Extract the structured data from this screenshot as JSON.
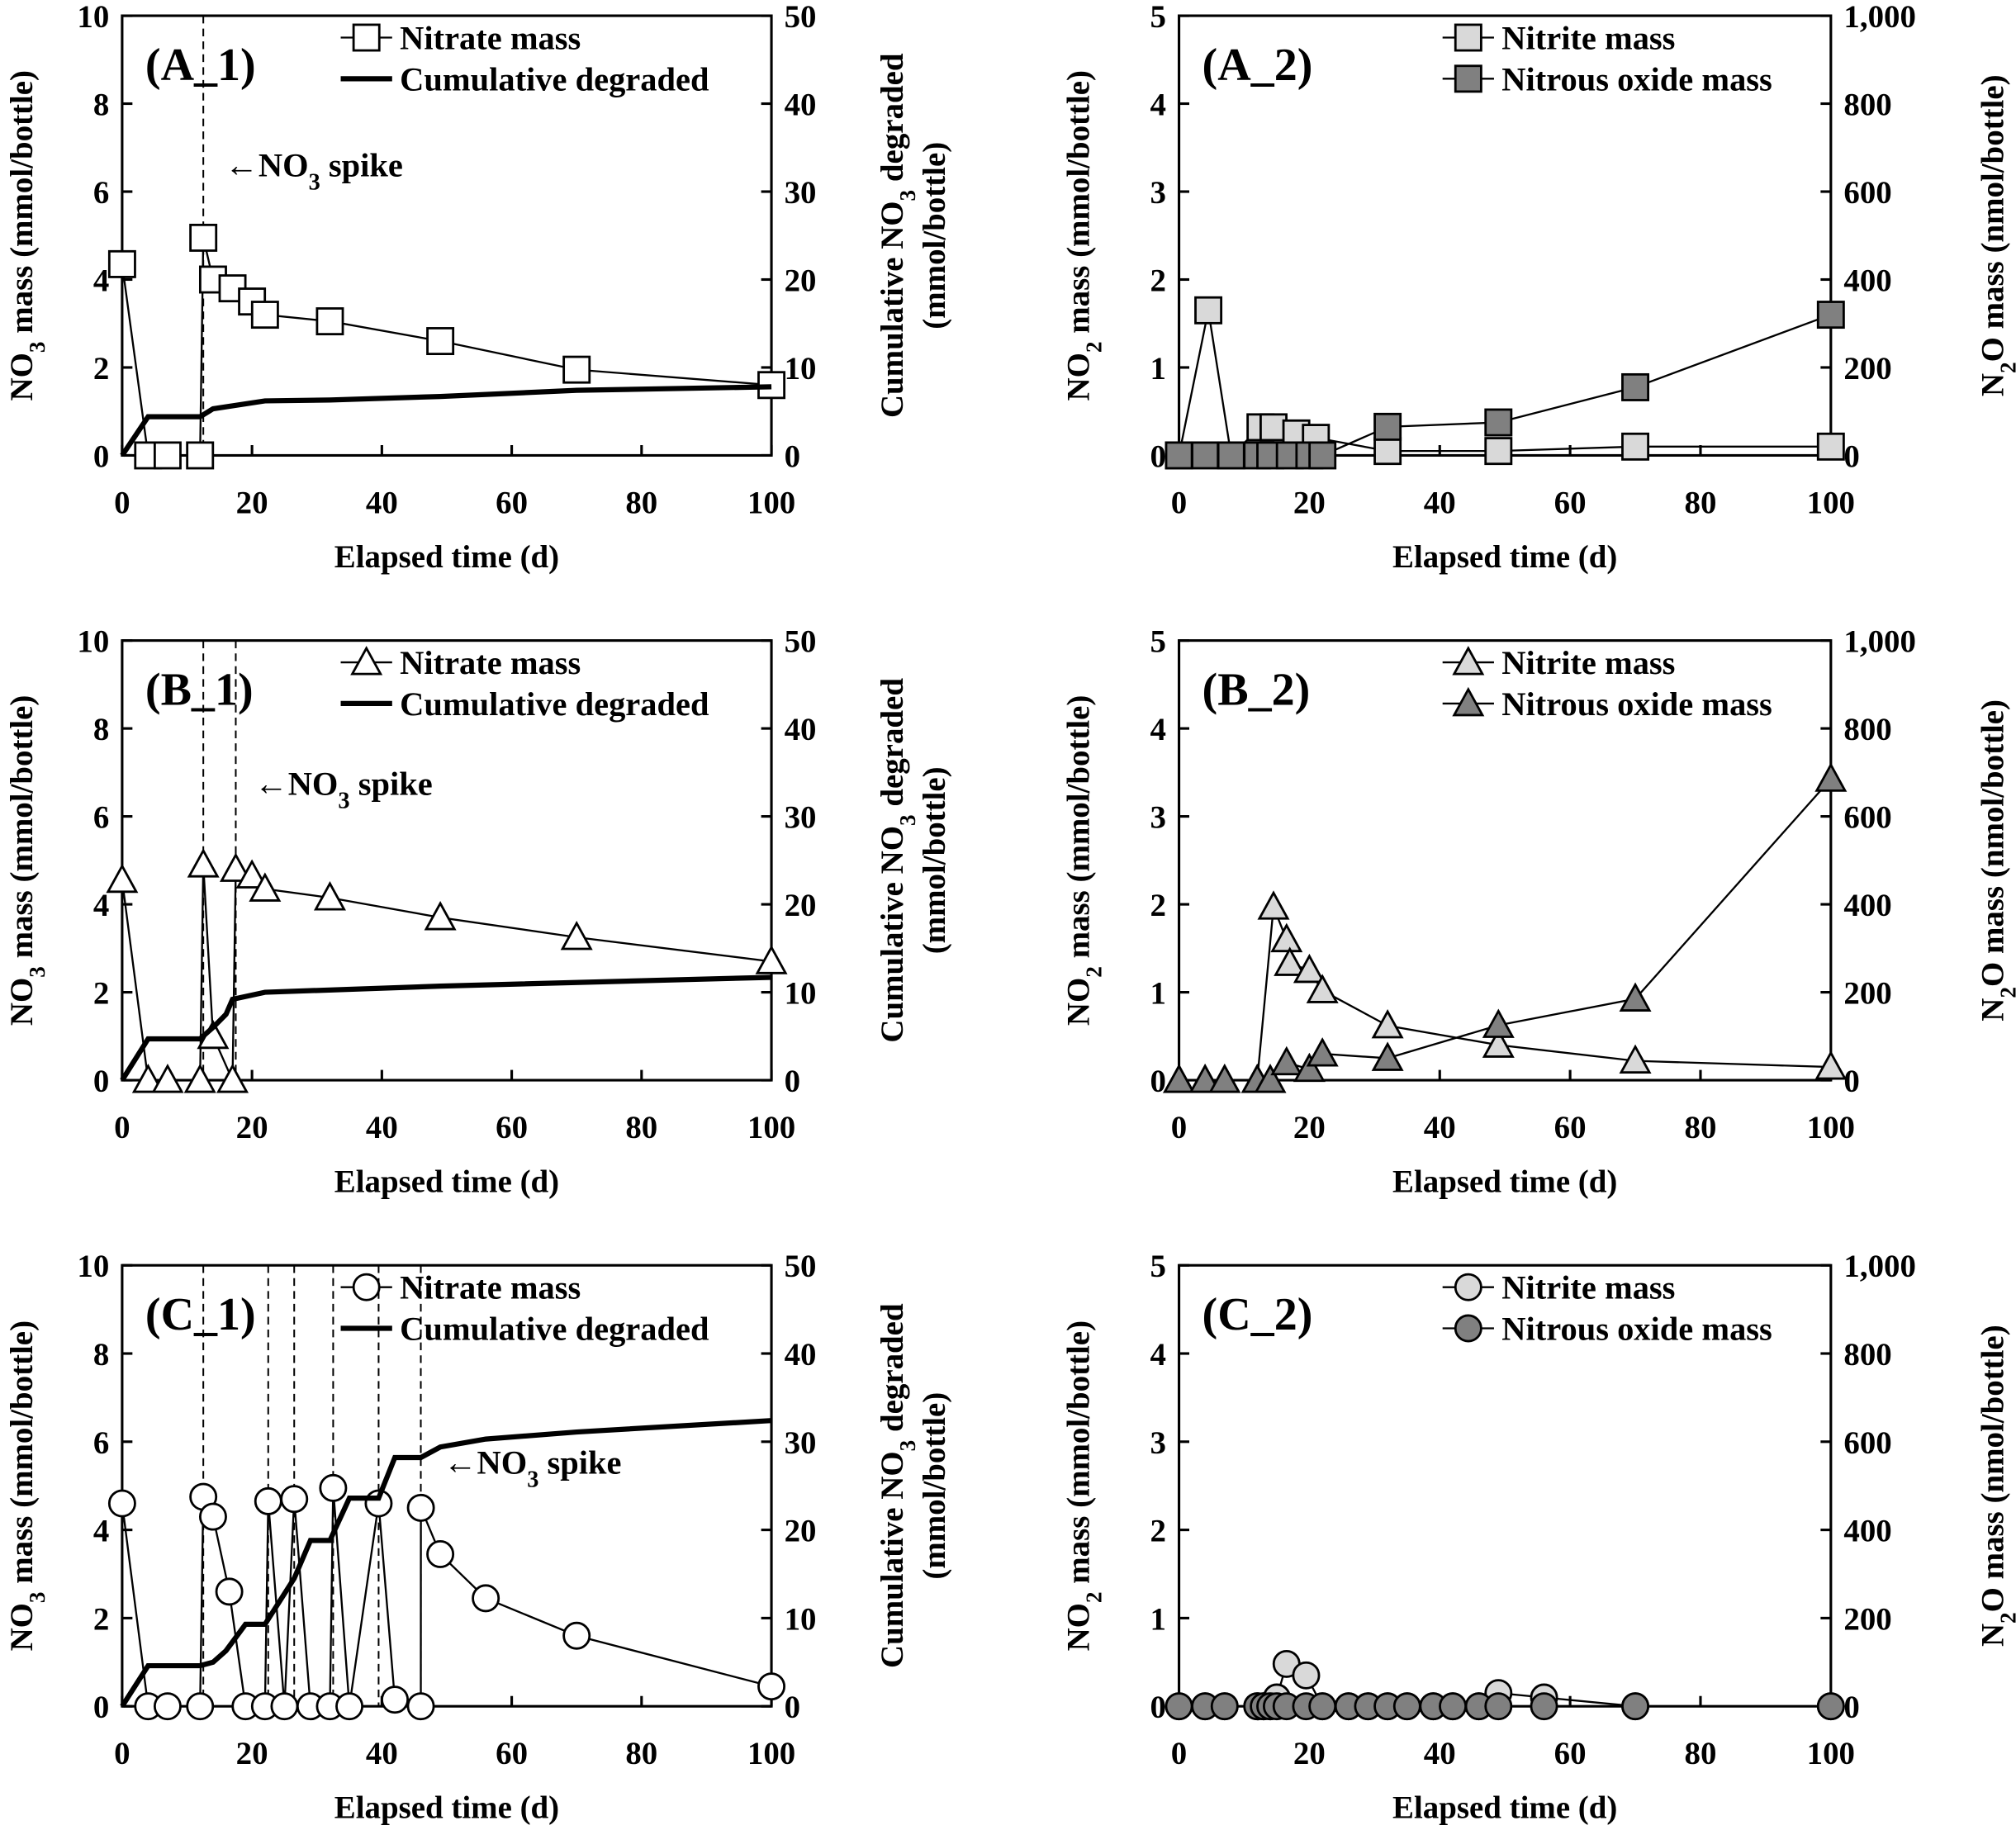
{
  "chart_data": [
    {
      "type": "line",
      "panel_label": "(A_1)",
      "xlabel": "Elapsed time (d)",
      "xlim": [
        0,
        100
      ],
      "xticks": [
        "0",
        "20",
        "40",
        "60",
        "80",
        "100"
      ],
      "ylabel": [
        {
          "t": "NO"
        },
        {
          "t": "3",
          "sub": true
        },
        {
          "t": " mass (mmol/bottle)"
        }
      ],
      "ylim": [
        0,
        10
      ],
      "yticks": [
        "0",
        "2",
        "4",
        "6",
        "8",
        "10"
      ],
      "y2label": [
        [
          {
            "t": "Cumulative NO"
          },
          {
            "t": "3",
            "sub": true
          },
          {
            "t": " degraded"
          }
        ],
        [
          {
            "t": "(mmol/bottle)"
          }
        ]
      ],
      "y2lim": [
        0,
        50
      ],
      "y2ticks": [
        "0",
        "10",
        "20",
        "30",
        "40",
        "50"
      ],
      "spikes": [
        12.5
      ],
      "annotation": [
        {
          "t": "←NO"
        },
        {
          "t": "3",
          "sub": true
        },
        {
          "t": " spike"
        }
      ],
      "series": [
        {
          "name": "Nitrate mass",
          "axis": "left",
          "marker": "square",
          "fill": "#ffffff",
          "x": [
            0,
            4,
            7,
            12,
            12.5,
            14,
            17,
            20,
            22,
            32,
            49,
            70,
            100
          ],
          "y": [
            4.35,
            0,
            0,
            0,
            4.95,
            4.0,
            3.8,
            3.5,
            3.2,
            3.05,
            2.6,
            1.95,
            1.6
          ]
        },
        {
          "name": "Cumulative degraded",
          "axis": "right",
          "marker": "none",
          "fill": "#000000",
          "x": [
            0,
            4,
            12,
            14,
            22,
            32,
            49,
            70,
            100
          ],
          "y": [
            0,
            4.4,
            4.4,
            5.3,
            6.2,
            6.3,
            6.7,
            7.4,
            7.8
          ]
        }
      ]
    },
    {
      "type": "line",
      "panel_label": "(A_2)",
      "xlabel": "Elapsed time (d)",
      "xlim": [
        0,
        100
      ],
      "xticks": [
        "0",
        "20",
        "40",
        "60",
        "80",
        "100"
      ],
      "ylabel": [
        {
          "t": "NO"
        },
        {
          "t": "2",
          "sub": true
        },
        {
          "t": " mass (mmol/bottle)"
        }
      ],
      "ylim": [
        0,
        5
      ],
      "yticks": [
        "0",
        "1",
        "2",
        "3",
        "4",
        "5"
      ],
      "y2label": [
        [
          {
            "t": "N"
          },
          {
            "t": "2",
            "sub": true
          },
          {
            "t": "O mass (nmol/bottle)"
          }
        ]
      ],
      "y2lim": [
        0,
        1000
      ],
      "y2ticks": [
        "0",
        "200",
        "400",
        "600",
        "800",
        "1,000"
      ],
      "spikes": [],
      "series": [
        {
          "name": "Nitrite mass",
          "axis": "left",
          "marker": "square",
          "fill": "#d9d9d9",
          "x": [
            0,
            4.5,
            8,
            12.5,
            14.5,
            18,
            21,
            32,
            49,
            70,
            100
          ],
          "y": [
            0,
            1.65,
            0,
            0.32,
            0.32,
            0.25,
            0.2,
            0.05,
            0.05,
            0.1,
            0.1
          ]
        },
        {
          "name": "Nitrous oxide mass",
          "axis": "right",
          "marker": "square",
          "fill": "#808080",
          "x": [
            0,
            4,
            8,
            12,
            14,
            17,
            20,
            22,
            32,
            49,
            70,
            100
          ],
          "y": [
            0,
            0,
            0,
            0,
            0,
            0,
            0,
            0,
            65,
            75,
            155,
            320
          ]
        }
      ]
    },
    {
      "type": "line",
      "panel_label": "(B_1)",
      "xlabel": "Elapsed time (d)",
      "xlim": [
        0,
        100
      ],
      "xticks": [
        "0",
        "20",
        "40",
        "60",
        "80",
        "100"
      ],
      "ylabel": [
        {
          "t": "NO"
        },
        {
          "t": "3",
          "sub": true
        },
        {
          "t": " mass (mmol/bottle)"
        }
      ],
      "ylim": [
        0,
        10
      ],
      "yticks": [
        "0",
        "2",
        "4",
        "6",
        "8",
        "10"
      ],
      "y2label": [
        [
          {
            "t": "Cumulative NO"
          },
          {
            "t": "3",
            "sub": true
          },
          {
            "t": " degraded"
          }
        ],
        [
          {
            "t": "(mmol/bottle)"
          }
        ]
      ],
      "y2lim": [
        0,
        50
      ],
      "y2ticks": [
        "0",
        "10",
        "20",
        "30",
        "40",
        "50"
      ],
      "spikes": [
        12.5,
        17.5
      ],
      "annotation": [
        {
          "t": "←NO"
        },
        {
          "t": "3",
          "sub": true
        },
        {
          "t": " spike"
        }
      ],
      "series": [
        {
          "name": "Nitrate mass",
          "axis": "left",
          "marker": "triangle",
          "fill": "#ffffff",
          "x": [
            0,
            4,
            7,
            12,
            12.5,
            14,
            17,
            17.5,
            20,
            22,
            32,
            49,
            70,
            100
          ],
          "y": [
            4.55,
            0,
            0,
            0,
            4.9,
            1.0,
            0,
            4.8,
            4.65,
            4.35,
            4.15,
            3.7,
            3.25,
            2.7
          ]
        },
        {
          "name": "Cumulative degraded",
          "axis": "right",
          "marker": "none",
          "fill": "#000000",
          "x": [
            0,
            4,
            12,
            14,
            16,
            17,
            22,
            49,
            100
          ],
          "y": [
            0,
            4.7,
            4.7,
            6.0,
            7.5,
            9.2,
            10.0,
            10.7,
            11.7
          ]
        }
      ]
    },
    {
      "type": "line",
      "panel_label": "(B_2)",
      "xlabel": "Elapsed time (d)",
      "xlim": [
        0,
        100
      ],
      "xticks": [
        "0",
        "20",
        "40",
        "60",
        "80",
        "100"
      ],
      "ylabel": [
        {
          "t": "NO"
        },
        {
          "t": "2",
          "sub": true
        },
        {
          "t": " mass (mmol/bottle)"
        }
      ],
      "ylim": [
        0,
        5
      ],
      "yticks": [
        "0",
        "1",
        "2",
        "3",
        "4",
        "5"
      ],
      "y2label": [
        [
          {
            "t": "N"
          },
          {
            "t": "2",
            "sub": true
          },
          {
            "t": "O mass (nmol/bottle)"
          }
        ]
      ],
      "y2lim": [
        0,
        1000
      ],
      "y2ticks": [
        "0",
        "200",
        "400",
        "600",
        "800",
        "1,000"
      ],
      "spikes": [],
      "series": [
        {
          "name": "Nitrite mass",
          "axis": "left",
          "marker": "triangle",
          "fill": "#d9d9d9",
          "x": [
            0,
            4,
            7,
            12,
            14.5,
            16.5,
            17,
            20,
            22,
            32,
            49,
            70,
            100
          ],
          "y": [
            0,
            0,
            0,
            0,
            1.97,
            1.6,
            1.33,
            1.25,
            1.02,
            0.62,
            0.4,
            0.22,
            0.15
          ]
        },
        {
          "name": "Nitrous oxide mass",
          "axis": "right",
          "marker": "triangle",
          "fill": "#808080",
          "x": [
            0,
            4,
            7,
            12,
            14,
            16.5,
            20,
            22,
            32,
            49,
            70,
            100
          ],
          "y": [
            0,
            0,
            0,
            0,
            0,
            40,
            25,
            60,
            50,
            125,
            185,
            685
          ]
        }
      ]
    },
    {
      "type": "line",
      "panel_label": "(C_1)",
      "xlabel": "Elapsed time (d)",
      "xlim": [
        0,
        100
      ],
      "xticks": [
        "0",
        "20",
        "40",
        "60",
        "80",
        "100"
      ],
      "ylabel": [
        {
          "t": "NO"
        },
        {
          "t": "3",
          "sub": true
        },
        {
          "t": " mass (mmol/bottle)"
        }
      ],
      "ylim": [
        0,
        10
      ],
      "yticks": [
        "0",
        "2",
        "4",
        "6",
        "8",
        "10"
      ],
      "y2label": [
        [
          {
            "t": "Cumulative NO"
          },
          {
            "t": "3",
            "sub": true
          },
          {
            "t": " degraded"
          }
        ],
        [
          {
            "t": "(mmol/bottle)"
          }
        ]
      ],
      "y2lim": [
        0,
        50
      ],
      "y2ticks": [
        "0",
        "10",
        "20",
        "30",
        "40",
        "50"
      ],
      "spikes": [
        12.5,
        22.5,
        26.5,
        32.5,
        39.5,
        46
      ],
      "annotation": [
        {
          "t": "←NO"
        },
        {
          "t": "3",
          "sub": true
        },
        {
          "t": " spike"
        }
      ],
      "series": [
        {
          "name": "Nitrate mass",
          "axis": "left",
          "marker": "circle",
          "fill": "#ffffff",
          "x": [
            0,
            4,
            7,
            12,
            12.5,
            14,
            16.5,
            19,
            22,
            22.5,
            25,
            26.5,
            29,
            32,
            32.5,
            35,
            39.5,
            42,
            46,
            46.01,
            49,
            56,
            70,
            100
          ],
          "y": [
            4.6,
            0,
            0,
            0,
            4.75,
            4.3,
            2.6,
            0,
            0,
            4.65,
            0,
            4.7,
            0,
            0,
            4.95,
            0,
            4.6,
            0.15,
            0,
            4.5,
            3.45,
            2.45,
            1.6,
            0.45
          ]
        },
        {
          "name": "Cumulative degraded",
          "axis": "right",
          "marker": "none",
          "fill": "#000000",
          "x": [
            0,
            4,
            12,
            14,
            16,
            19,
            22,
            26.5,
            29,
            32,
            35,
            39.5,
            42,
            46,
            49,
            56,
            70,
            100
          ],
          "y": [
            0,
            4.6,
            4.6,
            5.0,
            6.3,
            9.3,
            9.3,
            14.5,
            18.8,
            18.8,
            23.6,
            23.6,
            28.2,
            28.2,
            29.4,
            30.3,
            31.1,
            32.4
          ]
        }
      ]
    },
    {
      "type": "line",
      "panel_label": "(C_2)",
      "xlabel": "Elapsed time (d)",
      "xlim": [
        0,
        100
      ],
      "xticks": [
        "0",
        "20",
        "40",
        "60",
        "80",
        "100"
      ],
      "ylabel": [
        {
          "t": "NO"
        },
        {
          "t": "2",
          "sub": true
        },
        {
          "t": " mass (mmol/bottle)"
        }
      ],
      "ylim": [
        0,
        5
      ],
      "yticks": [
        "0",
        "1",
        "2",
        "3",
        "4",
        "5"
      ],
      "y2label": [
        [
          {
            "t": "N"
          },
          {
            "t": "2",
            "sub": true
          },
          {
            "t": "O mass (nmol/bottle)"
          }
        ]
      ],
      "y2lim": [
        0,
        1000
      ],
      "y2ticks": [
        "0",
        "200",
        "400",
        "600",
        "800",
        "1,000"
      ],
      "spikes": [],
      "series": [
        {
          "name": "Nitrite mass",
          "axis": "left",
          "marker": "circle",
          "fill": "#d9d9d9",
          "x": [
            0,
            4,
            7,
            12,
            13,
            14,
            15,
            16.5,
            19.5,
            22,
            26,
            29,
            32,
            35,
            39,
            42,
            46,
            49,
            56,
            70,
            100
          ],
          "y": [
            0,
            0,
            0,
            0,
            0,
            0,
            0.1,
            0.48,
            0.35,
            0,
            0,
            0,
            0,
            0,
            0,
            0,
            0,
            0.15,
            0.1,
            0,
            0
          ]
        },
        {
          "name": "Nitrous oxide mass",
          "axis": "right",
          "marker": "circle",
          "fill": "#808080",
          "x": [
            0,
            4,
            7,
            12,
            13,
            14,
            15,
            16.5,
            19.5,
            22,
            26,
            29,
            32,
            35,
            39,
            42,
            46,
            49,
            56,
            70,
            100
          ],
          "y": [
            0,
            0,
            0,
            0,
            0,
            0,
            0,
            0,
            0,
            0,
            0,
            0,
            0,
            0,
            0,
            0,
            0,
            0,
            0,
            0,
            0
          ]
        }
      ]
    }
  ]
}
